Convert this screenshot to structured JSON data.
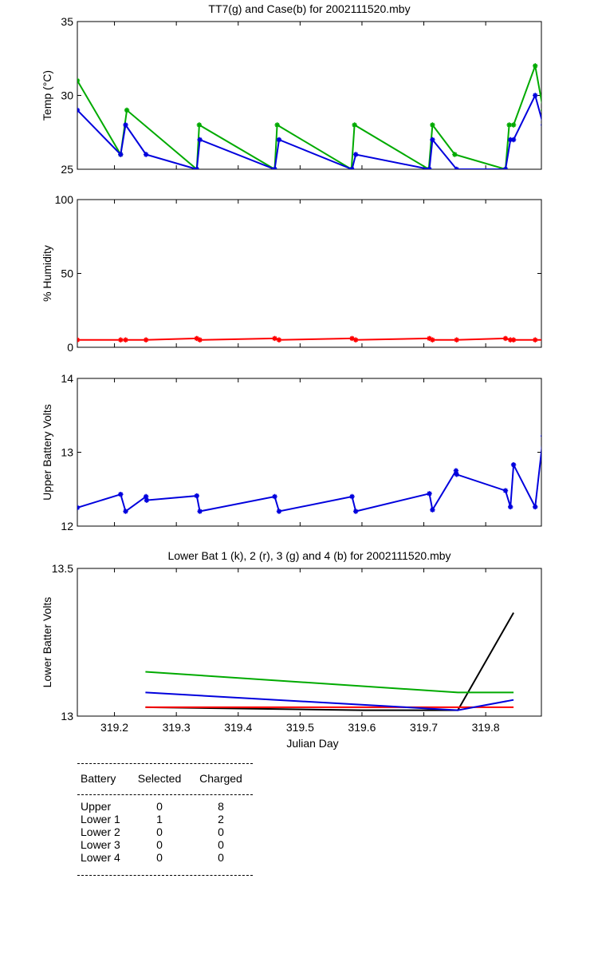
{
  "chart_data": [
    {
      "type": "line",
      "title": "TT7(g) and Case(b) for 2002111520.mby",
      "xlabel": "",
      "ylabel": "Temp  (°C)",
      "xlim": [
        319.14,
        319.89
      ],
      "ylim": [
        25,
        35
      ],
      "yticks": [
        "25",
        "30",
        "35"
      ],
      "grid": false,
      "series": [
        {
          "color": "#00aa00",
          "marker": "*",
          "x": [
            319.14,
            319.21,
            319.22,
            319.333,
            319.337,
            319.459,
            319.463,
            319.583,
            319.588,
            319.708,
            319.714,
            319.75,
            319.832,
            319.838,
            319.845,
            319.88,
            319.893
          ],
          "y": [
            31,
            26,
            29,
            25,
            28,
            25,
            28,
            25,
            28,
            25,
            28,
            26,
            25,
            28,
            28,
            32,
            29
          ]
        },
        {
          "color": "#0000dd",
          "marker": "*",
          "x": [
            319.14,
            319.21,
            319.218,
            319.251,
            319.333,
            319.338,
            319.459,
            319.466,
            319.584,
            319.59,
            319.709,
            319.714,
            319.753,
            319.832,
            319.84,
            319.845,
            319.88,
            319.893
          ],
          "y": [
            29,
            26,
            28,
            26,
            25,
            27,
            25,
            27,
            25,
            26,
            25,
            27,
            25,
            25,
            27,
            27,
            30,
            28
          ]
        }
      ]
    },
    {
      "type": "line",
      "title": "",
      "xlabel": "",
      "ylabel": "% Humidity",
      "xlim": [
        319.14,
        319.89
      ],
      "ylim": [
        0,
        100
      ],
      "yticks": [
        "0",
        "50",
        "100"
      ],
      "grid": false,
      "series": [
        {
          "color": "#ff0000",
          "marker": "*",
          "x": [
            319.14,
            319.21,
            319.218,
            319.251,
            319.333,
            319.338,
            319.459,
            319.466,
            319.584,
            319.59,
            319.709,
            319.714,
            319.753,
            319.832,
            319.84,
            319.845,
            319.88,
            319.893
          ],
          "y": [
            5,
            5,
            5,
            5,
            6,
            5,
            6,
            5,
            6,
            5,
            6,
            5,
            5,
            6,
            5,
            5,
            5,
            5
          ]
        }
      ]
    },
    {
      "type": "line",
      "title": "",
      "xlabel": "",
      "ylabel": "Upper Battery Volts",
      "xlim": [
        319.14,
        319.89
      ],
      "ylim": [
        12,
        14
      ],
      "yticks": [
        "12",
        "13",
        "14"
      ],
      "grid": false,
      "series": [
        {
          "color": "#0000dd",
          "marker": "*",
          "x": [
            319.14,
            319.21,
            319.218,
            319.251,
            319.252,
            319.333,
            319.338,
            319.459,
            319.466,
            319.584,
            319.59,
            319.709,
            319.714,
            319.752,
            319.753,
            319.832,
            319.84,
            319.845,
            319.88,
            319.893
          ],
          "y": [
            12.25,
            12.43,
            12.2,
            12.4,
            12.35,
            12.41,
            12.2,
            12.4,
            12.2,
            12.4,
            12.2,
            12.44,
            12.22,
            12.75,
            12.7,
            12.48,
            12.26,
            12.83,
            12.26,
            13.22
          ]
        }
      ]
    },
    {
      "type": "line",
      "title": "Lower Bat 1 (k), 2 (r), 3 (g) and 4 (b) for 2002111520.mby",
      "xlabel": "Julian Day",
      "ylabel": "Lower Batter Volts",
      "xlim": [
        319.14,
        319.89
      ],
      "ylim": [
        13,
        13.5
      ],
      "yticks": [
        "13",
        "13.5"
      ],
      "xticks": [
        "319.2",
        "319.3",
        "319.4",
        "319.5",
        "319.6",
        "319.7",
        "319.8"
      ],
      "grid": false,
      "series": [
        {
          "color": "#000000",
          "x": [
            319.25,
            319.6,
            319.755,
            319.845
          ],
          "y": [
            13.03,
            13.02,
            13.02,
            13.35
          ]
        },
        {
          "color": "#ff0000",
          "x": [
            319.25,
            319.845
          ],
          "y": [
            13.03,
            13.03
          ]
        },
        {
          "color": "#00aa00",
          "x": [
            319.25,
            319.755,
            319.845
          ],
          "y": [
            13.15,
            13.08,
            13.08
          ]
        },
        {
          "color": "#0000dd",
          "x": [
            319.25,
            319.755,
            319.845
          ],
          "y": [
            13.08,
            13.02,
            13.055
          ]
        }
      ]
    }
  ],
  "battery_table": {
    "headers": [
      "Battery",
      "Selected",
      "Charged"
    ],
    "rows": [
      [
        "Upper",
        "0",
        "8"
      ],
      [
        "Lower 1",
        "1",
        "2"
      ],
      [
        "Lower 2",
        "0",
        "0"
      ],
      [
        "Lower 3",
        "0",
        "0"
      ],
      [
        "Lower 4",
        "0",
        "0"
      ]
    ]
  }
}
